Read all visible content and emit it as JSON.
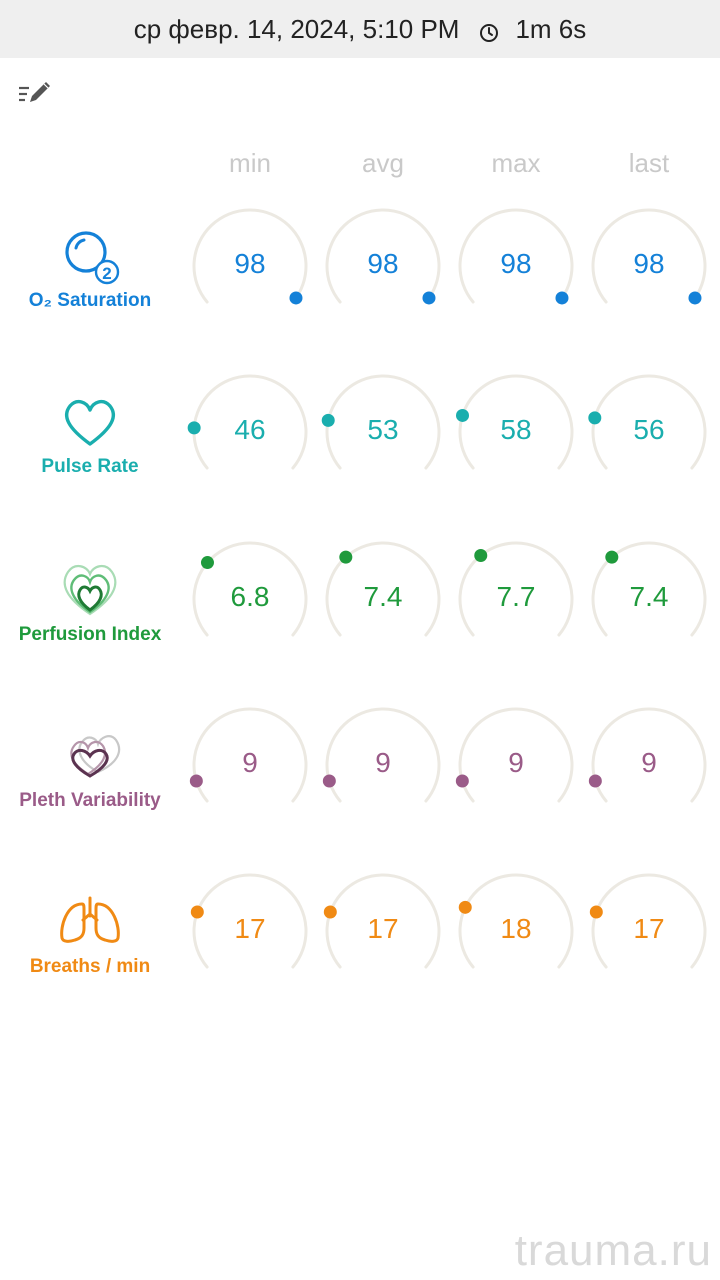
{
  "status_bar": {
    "datetime": "ср февр. 14, 2024, 5:10 PM",
    "clock_icon": "clock-icon",
    "duration": "1m 6s"
  },
  "toolbar": {
    "edit_icon": "edit-list-icon"
  },
  "columns": [
    "min",
    "avg",
    "max",
    "last"
  ],
  "gauge_track_color": "#ece9e2",
  "metrics": [
    {
      "label": "O₂ Saturation",
      "icon": "o2-saturation-icon",
      "color": "#1481d8",
      "values": [
        "98",
        "98",
        "98",
        "98"
      ],
      "levels": [
        0.98,
        0.98,
        0.98,
        0.98
      ]
    },
    {
      "label": "Pulse Rate",
      "icon": "heart-icon",
      "color": "#1aaeae",
      "values": [
        "46",
        "53",
        "58",
        "56"
      ],
      "levels": [
        0.17,
        0.2,
        0.22,
        0.21
      ]
    },
    {
      "label": "Perfusion Index",
      "icon": "perfusion-hearts-icon",
      "color": "#1f9a3c",
      "values": [
        "6.8",
        "7.4",
        "7.7",
        "7.4"
      ],
      "levels": [
        0.31,
        0.34,
        0.35,
        0.34
      ]
    },
    {
      "label": "Pleth Variability",
      "icon": "pleth-variability-icon",
      "color": "#9a5b88",
      "values": [
        "9",
        "9",
        "9",
        "9"
      ],
      "levels": [
        0.09,
        0.09,
        0.09,
        0.09
      ]
    },
    {
      "label": "Breaths / min",
      "icon": "lungs-icon",
      "color": "#f08a14",
      "values": [
        "17",
        "17",
        "18",
        "17"
      ],
      "levels": [
        0.23,
        0.23,
        0.25,
        0.23
      ]
    }
  ],
  "watermark": "trauma.ru"
}
